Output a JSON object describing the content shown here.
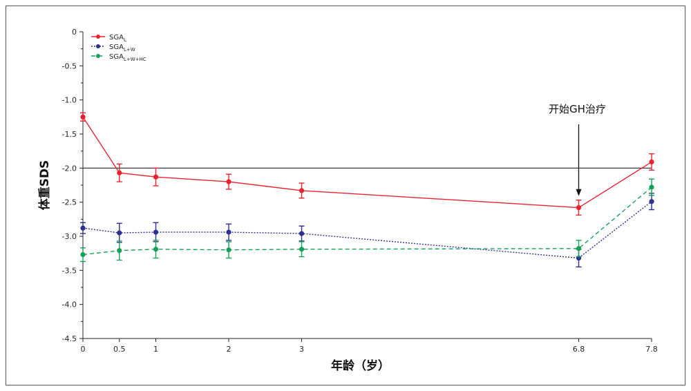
{
  "chart_data": {
    "type": "line",
    "title": "",
    "xlabel": "年龄（岁）",
    "ylabel": "体重SDS",
    "x": [
      0,
      0.5,
      1,
      2,
      3,
      6.8,
      7.8
    ],
    "x_tick_labels": [
      "0",
      "0.5",
      "1",
      "2",
      "3",
      "6.8",
      "7.8"
    ],
    "ylim": [
      -4.5,
      0
    ],
    "y_ticks": [
      0,
      -0.5,
      -1.0,
      -1.5,
      -2.0,
      -2.5,
      -3.0,
      -3.5,
      -4.0,
      -4.5
    ],
    "y_tick_labels": [
      "0",
      "-0.5",
      "-1.0",
      "-1.5",
      "-2.0",
      "-2.5",
      "-3.0",
      "-3.5",
      "-4.0",
      "-4.5"
    ],
    "reference_line": -2.0,
    "legend_position": "top-left",
    "series": [
      {
        "name_main": "SGA",
        "name_sub": "L",
        "color": "#e8232f",
        "dash": "solid",
        "values": [
          -1.25,
          -2.07,
          -2.13,
          -2.2,
          -2.33,
          -2.58,
          -1.91
        ],
        "errors": [
          0.06,
          0.13,
          0.13,
          0.11,
          0.11,
          0.11,
          0.12
        ]
      },
      {
        "name_main": "SGA",
        "name_sub": "L+W",
        "color": "#2e2f8f",
        "dash": "dotted",
        "values": [
          -2.88,
          -2.95,
          -2.94,
          -2.94,
          -2.96,
          -3.32,
          -2.49
        ],
        "errors": [
          0.08,
          0.14,
          0.14,
          0.12,
          0.11,
          0.13,
          0.12
        ]
      },
      {
        "name_main": "SGA",
        "name_sub": "L+W+HC",
        "color": "#17a05a",
        "dash": "dashed",
        "values": [
          -3.27,
          -3.21,
          -3.19,
          -3.2,
          -3.19,
          -3.18,
          -2.28
        ],
        "errors": [
          0.1,
          0.14,
          0.13,
          0.12,
          0.11,
          0.12,
          0.12
        ]
      }
    ],
    "annotations": [
      {
        "text": "开始GH治疗",
        "x": 6.8,
        "arrow_to_y": -2.4
      }
    ]
  }
}
